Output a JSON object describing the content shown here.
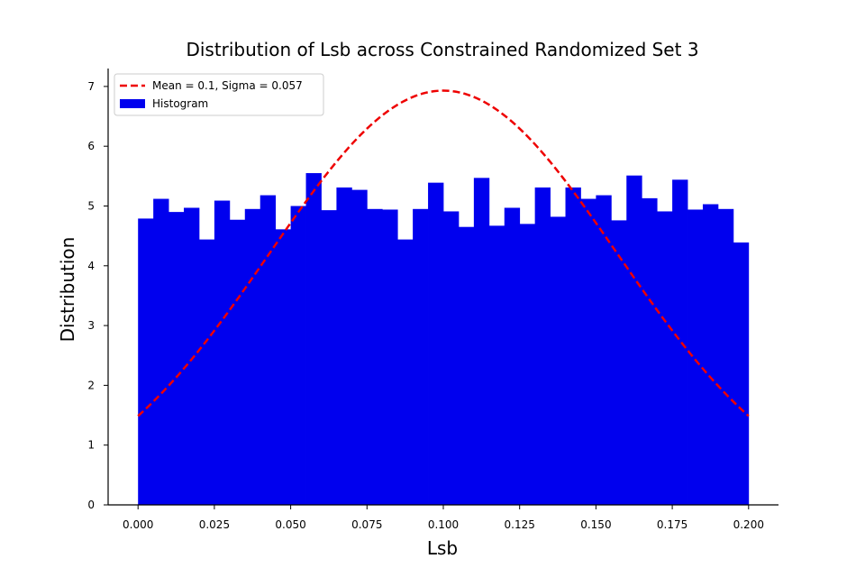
{
  "chart_data": {
    "type": "bar",
    "title": "Distribution of Lsb across Constrained Randomized Set 3",
    "xlabel": "Lsb",
    "ylabel": "Distribution",
    "xlim": [
      -0.0098,
      0.2098
    ],
    "ylim": [
      0,
      7.3
    ],
    "xticks": [
      "0.000",
      "0.025",
      "0.050",
      "0.075",
      "0.100",
      "0.125",
      "0.150",
      "0.175",
      "0.200"
    ],
    "yticks": [
      "0",
      "1",
      "2",
      "3",
      "4",
      "5",
      "6",
      "7"
    ],
    "grid": false,
    "legend_position": "top-left",
    "bin_start": 0.0,
    "bin_width": 0.005,
    "histogram": {
      "name": "Histogram",
      "color": "#0000ee",
      "values": [
        4.79,
        5.12,
        4.9,
        4.97,
        4.44,
        5.09,
        4.77,
        4.95,
        5.18,
        4.61,
        5.0,
        5.55,
        4.93,
        5.31,
        5.27,
        4.95,
        4.94,
        4.44,
        4.95,
        5.39,
        4.91,
        4.65,
        5.47,
        4.67,
        4.97,
        4.7,
        5.31,
        4.82,
        5.31,
        5.12,
        5.18,
        4.76,
        5.51,
        5.13,
        4.91,
        5.44,
        4.94,
        5.03,
        4.95,
        4.39
      ]
    },
    "fit": {
      "name": "Mean = 0.1, Sigma = 0.057",
      "color": "#ee0000",
      "mean": 0.1,
      "sigma": 0.057,
      "peak": 6.93,
      "x_range": [
        0.0,
        0.2
      ]
    }
  }
}
